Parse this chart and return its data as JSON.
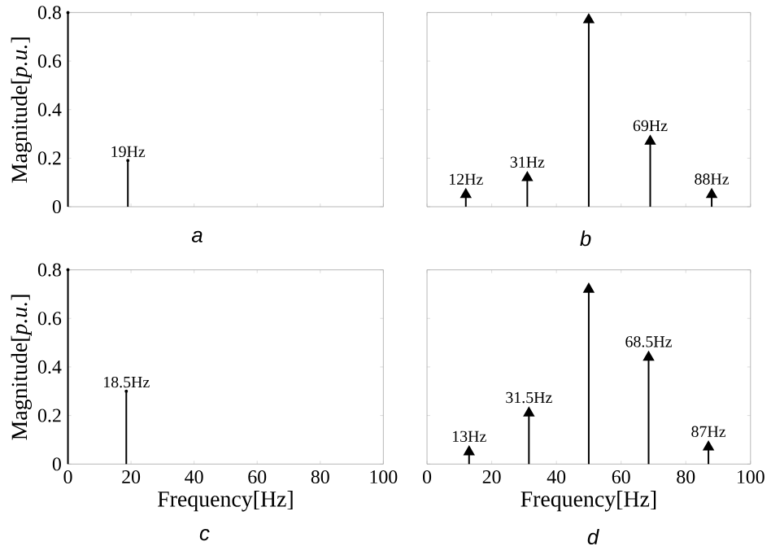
{
  "chart_data": [
    {
      "type": "lollipop",
      "x": [
        0,
        19
      ],
      "values": [
        0.8,
        0.19
      ],
      "color": "#000000",
      "marker": "none",
      "xlim": [
        0,
        100
      ],
      "ylim": [
        0,
        0.8
      ],
      "xticks": [
        0,
        20,
        40,
        60,
        80,
        100
      ],
      "yticks": [
        0,
        0.2,
        0.4,
        0.6,
        0.8
      ],
      "tick_labels": "y",
      "ylabel": "Magnitude[*p.u.*]",
      "grid": false,
      "annotations": [
        {
          "text": "19Hz",
          "x": 19,
          "y": 0.19
        },
        "a"
      ]
    },
    {
      "type": "lollipop",
      "x": [
        12,
        31,
        50,
        69,
        88
      ],
      "values": [
        0.05,
        0.12,
        0.77,
        0.27,
        0.05
      ],
      "color": "#000000",
      "marker": "triangle",
      "xlim": [
        0,
        100
      ],
      "ylim": [
        0,
        0.8
      ],
      "xticks": [
        0,
        20,
        40,
        60,
        80,
        100
      ],
      "yticks": [
        0,
        0.2,
        0.4,
        0.6,
        0.8
      ],
      "tick_labels": false,
      "grid": false,
      "annotations": [
        {
          "text": "12Hz",
          "x": 12,
          "y": 0.05
        },
        {
          "text": "31Hz",
          "x": 31,
          "y": 0.12
        },
        {
          "text": "69Hz",
          "x": 69,
          "y": 0.27
        },
        {
          "text": "88Hz",
          "x": 88,
          "y": 0.05
        },
        "b"
      ]
    },
    {
      "type": "lollipop",
      "x": [
        0,
        18.5
      ],
      "values": [
        0.8,
        0.3
      ],
      "color": "#000000",
      "marker": "none",
      "xlim": [
        0,
        100
      ],
      "ylim": [
        0,
        0.8
      ],
      "xticks": [
        0,
        20,
        40,
        60,
        80,
        100
      ],
      "yticks": [
        0,
        0.2,
        0.4,
        0.6,
        0.8
      ],
      "ylabel": "Magnitude[*p.u.*]",
      "xlabel": "Frequency[Hz]",
      "grid": false,
      "annotations": [
        {
          "text": "18.5Hz",
          "x": 18.5,
          "y": 0.3
        },
        "c"
      ]
    },
    {
      "type": "lollipop",
      "x": [
        13,
        31.5,
        50,
        68.5,
        87
      ],
      "values": [
        0.05,
        0.21,
        0.72,
        0.44,
        0.07
      ],
      "color": "#000000",
      "marker": "triangle",
      "xlim": [
        0,
        100
      ],
      "ylim": [
        0,
        0.8
      ],
      "xticks": [
        0,
        20,
        40,
        60,
        80,
        100
      ],
      "yticks": [
        0,
        0.2,
        0.4,
        0.6,
        0.8
      ],
      "tick_labels": "x",
      "xlabel": "Frequency[Hz]",
      "grid": false,
      "annotations": [
        {
          "text": "13Hz",
          "x": 13,
          "y": 0.05
        },
        {
          "text": "31.5Hz",
          "x": 31.5,
          "y": 0.21
        },
        {
          "text": "68.5Hz",
          "x": 68.5,
          "y": 0.44
        },
        {
          "text": "87Hz",
          "x": 87,
          "y": 0.07
        },
        "d"
      ]
    }
  ]
}
